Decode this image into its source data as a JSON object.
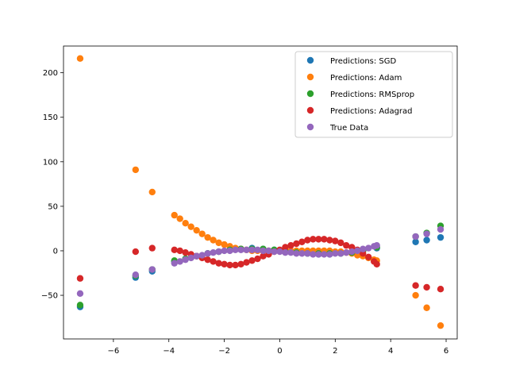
{
  "chart_data": {
    "type": "scatter",
    "xlim": [
      -7.8,
      6.4
    ],
    "ylim": [
      -99,
      230
    ],
    "xticks": [
      -6,
      -4,
      -2,
      0,
      2,
      4,
      6
    ],
    "yticks": [
      -50,
      0,
      50,
      100,
      150,
      200
    ],
    "grid": false,
    "legend_position": "top-right",
    "legend": [
      "Predictions: SGD",
      "Predictions: Adam",
      "Predictions: RMSprop",
      "Predictions: Adagrad",
      "True Data"
    ],
    "series": [
      {
        "name": "Predictions: SGD",
        "color": "#1f77b4",
        "points": [
          [
            -7.2,
            -63
          ],
          [
            -5.2,
            -30
          ],
          [
            -4.6,
            -23
          ],
          [
            -3.8,
            -12
          ],
          [
            -3.4,
            -9
          ],
          [
            -3.0,
            -6
          ],
          [
            -2.6,
            -3
          ],
          [
            -2.2,
            -1
          ],
          [
            -1.8,
            1
          ],
          [
            -1.4,
            2
          ],
          [
            -1.0,
            3
          ],
          [
            -0.6,
            2
          ],
          [
            -0.2,
            1
          ],
          [
            0.2,
            -1
          ],
          [
            0.6,
            -2
          ],
          [
            1.0,
            -3
          ],
          [
            1.4,
            -4
          ],
          [
            1.8,
            -4
          ],
          [
            2.2,
            -3
          ],
          [
            2.6,
            -2
          ],
          [
            3.0,
            0
          ],
          [
            3.5,
            3
          ],
          [
            4.9,
            10
          ],
          [
            5.3,
            12
          ],
          [
            5.8,
            15
          ]
        ]
      },
      {
        "name": "Predictions: Adam",
        "color": "#ff7f0e",
        "points": [
          [
            -7.2,
            216
          ],
          [
            -5.2,
            91
          ],
          [
            -4.6,
            66
          ],
          [
            -3.8,
            40
          ],
          [
            -3.6,
            36
          ],
          [
            -3.4,
            31
          ],
          [
            -3.2,
            27
          ],
          [
            -3.0,
            23
          ],
          [
            -2.8,
            19
          ],
          [
            -2.6,
            15
          ],
          [
            -2.4,
            12
          ],
          [
            -2.2,
            9
          ],
          [
            -2.0,
            7
          ],
          [
            -1.8,
            5
          ],
          [
            -1.6,
            3
          ],
          [
            -1.4,
            2
          ],
          [
            -1.2,
            1
          ],
          [
            -1.0,
            0
          ],
          [
            -0.8,
            0
          ],
          [
            -0.6,
            0
          ],
          [
            -0.4,
            0
          ],
          [
            -0.2,
            0
          ],
          [
            0.0,
            0
          ],
          [
            0.2,
            0
          ],
          [
            0.4,
            0
          ],
          [
            0.6,
            0
          ],
          [
            0.8,
            0
          ],
          [
            1.0,
            0
          ],
          [
            1.2,
            0
          ],
          [
            1.4,
            0
          ],
          [
            1.6,
            0
          ],
          [
            1.8,
            0
          ],
          [
            2.0,
            -1
          ],
          [
            2.2,
            -1
          ],
          [
            2.4,
            -2
          ],
          [
            2.6,
            -3
          ],
          [
            2.8,
            -5
          ],
          [
            3.0,
            -6
          ],
          [
            3.2,
            -8
          ],
          [
            3.4,
            -10
          ],
          [
            3.5,
            -11
          ],
          [
            4.9,
            -50
          ],
          [
            5.3,
            -64
          ],
          [
            5.8,
            -84
          ]
        ]
      },
      {
        "name": "Predictions: RMSprop",
        "color": "#2ca02c",
        "points": [
          [
            -7.2,
            -61
          ],
          [
            -5.2,
            -28
          ],
          [
            -4.6,
            -21
          ],
          [
            -3.8,
            -11
          ],
          [
            -3.4,
            -9
          ],
          [
            -3.0,
            -6
          ],
          [
            -2.6,
            -3
          ],
          [
            -2.2,
            -1
          ],
          [
            -1.8,
            1
          ],
          [
            -1.4,
            2
          ],
          [
            -1.0,
            2
          ],
          [
            -0.6,
            2
          ],
          [
            -0.2,
            1
          ],
          [
            0.2,
            -1
          ],
          [
            0.6,
            -2
          ],
          [
            1.0,
            -3
          ],
          [
            1.4,
            -3
          ],
          [
            1.8,
            -3
          ],
          [
            2.2,
            -3
          ],
          [
            2.6,
            -2
          ],
          [
            3.0,
            0
          ],
          [
            3.5,
            4
          ],
          [
            4.9,
            16
          ],
          [
            5.3,
            20
          ],
          [
            5.8,
            28
          ]
        ]
      },
      {
        "name": "Predictions: Adagrad",
        "color": "#d62728",
        "points": [
          [
            -7.2,
            -31
          ],
          [
            -5.2,
            -1
          ],
          [
            -4.6,
            3
          ],
          [
            -3.8,
            1
          ],
          [
            -3.6,
            0
          ],
          [
            -3.4,
            -2
          ],
          [
            -3.2,
            -4
          ],
          [
            -3.0,
            -6
          ],
          [
            -2.8,
            -8
          ],
          [
            -2.6,
            -10
          ],
          [
            -2.4,
            -12
          ],
          [
            -2.2,
            -14
          ],
          [
            -2.0,
            -15
          ],
          [
            -1.8,
            -16
          ],
          [
            -1.6,
            -16
          ],
          [
            -1.4,
            -15
          ],
          [
            -1.2,
            -13
          ],
          [
            -1.0,
            -11
          ],
          [
            -0.8,
            -9
          ],
          [
            -0.6,
            -6
          ],
          [
            -0.4,
            -4
          ],
          [
            -0.2,
            -1
          ],
          [
            0.0,
            1
          ],
          [
            0.2,
            4
          ],
          [
            0.4,
            6
          ],
          [
            0.6,
            8
          ],
          [
            0.8,
            10
          ],
          [
            1.0,
            12
          ],
          [
            1.2,
            13
          ],
          [
            1.4,
            13
          ],
          [
            1.6,
            13
          ],
          [
            1.8,
            12
          ],
          [
            2.0,
            11
          ],
          [
            2.2,
            9
          ],
          [
            2.4,
            6
          ],
          [
            2.6,
            4
          ],
          [
            2.8,
            1
          ],
          [
            3.0,
            -3
          ],
          [
            3.2,
            -7
          ],
          [
            3.4,
            -12
          ],
          [
            3.5,
            -15
          ],
          [
            4.9,
            -39
          ],
          [
            5.3,
            -41
          ],
          [
            5.8,
            -43
          ]
        ]
      },
      {
        "name": "True Data",
        "color": "#9467bd",
        "points": [
          [
            -7.2,
            -48
          ],
          [
            -5.2,
            -27
          ],
          [
            -4.6,
            -21
          ],
          [
            -3.8,
            -14
          ],
          [
            -3.6,
            -12
          ],
          [
            -3.4,
            -10
          ],
          [
            -3.2,
            -8
          ],
          [
            -3.0,
            -6
          ],
          [
            -2.8,
            -5
          ],
          [
            -2.6,
            -3
          ],
          [
            -2.4,
            -2
          ],
          [
            -2.2,
            -1
          ],
          [
            -2.0,
            0
          ],
          [
            -1.8,
            0
          ],
          [
            -1.6,
            1
          ],
          [
            -1.4,
            1
          ],
          [
            -1.2,
            1
          ],
          [
            -1.0,
            1
          ],
          [
            -0.8,
            1
          ],
          [
            -0.6,
            0
          ],
          [
            -0.4,
            0
          ],
          [
            -0.2,
            -1
          ],
          [
            0.0,
            -1
          ],
          [
            0.2,
            -2
          ],
          [
            0.4,
            -2
          ],
          [
            0.6,
            -3
          ],
          [
            0.8,
            -3
          ],
          [
            1.0,
            -3
          ],
          [
            1.2,
            -4
          ],
          [
            1.4,
            -4
          ],
          [
            1.6,
            -4
          ],
          [
            1.8,
            -4
          ],
          [
            2.0,
            -3
          ],
          [
            2.2,
            -3
          ],
          [
            2.4,
            -2
          ],
          [
            2.6,
            -1
          ],
          [
            2.8,
            0
          ],
          [
            3.0,
            2
          ],
          [
            3.2,
            3
          ],
          [
            3.4,
            5
          ],
          [
            3.5,
            6
          ],
          [
            4.9,
            16
          ],
          [
            5.3,
            19
          ],
          [
            5.8,
            24
          ]
        ]
      }
    ]
  }
}
